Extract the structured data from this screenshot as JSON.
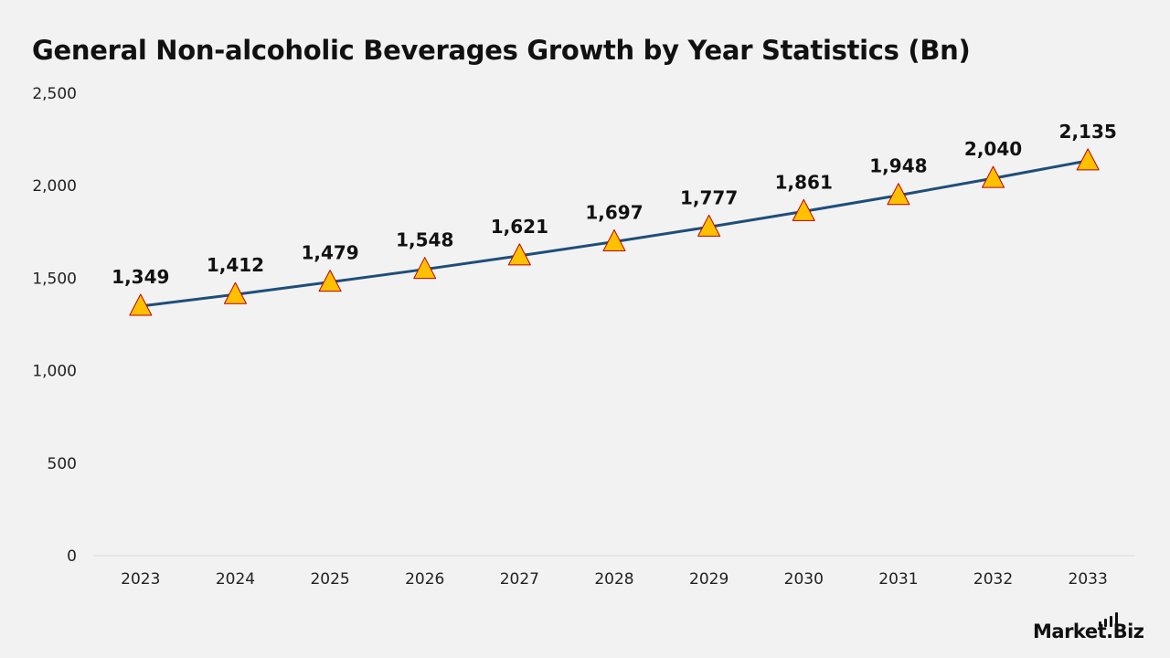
{
  "title": "General Non-alcoholic Beverages Growth by Year Statistics (Bn)",
  "brand": "Market.Biz",
  "colors": {
    "line": "#1f4e79",
    "marker_fill": "#ffc000",
    "marker_stroke": "#c00000",
    "background": "#f2f2f2",
    "axis": "#d9d9d9"
  },
  "chart_data": {
    "type": "line",
    "title": "General Non-alcoholic Beverages Growth by Year Statistics (Bn)",
    "xlabel": "",
    "ylabel": "",
    "categories": [
      "2023",
      "2024",
      "2025",
      "2026",
      "2027",
      "2028",
      "2029",
      "2030",
      "2031",
      "2032",
      "2033"
    ],
    "values": [
      1349,
      1412,
      1479,
      1548,
      1621,
      1697,
      1777,
      1861,
      1948,
      2040,
      2135
    ],
    "data_labels": [
      "1,349",
      "1,412",
      "1,479",
      "1,548",
      "1,621",
      "1,697",
      "1,777",
      "1,861",
      "1,948",
      "2,040",
      "2,135"
    ],
    "ylim": [
      0,
      2500
    ],
    "y_ticks": [
      0,
      500,
      1000,
      1500,
      2000,
      2500
    ],
    "y_tick_labels": [
      "0",
      "500",
      "1,000",
      "1,500",
      "2,000",
      "2,500"
    ],
    "marker": "triangle",
    "grid": false,
    "legend": "none"
  }
}
